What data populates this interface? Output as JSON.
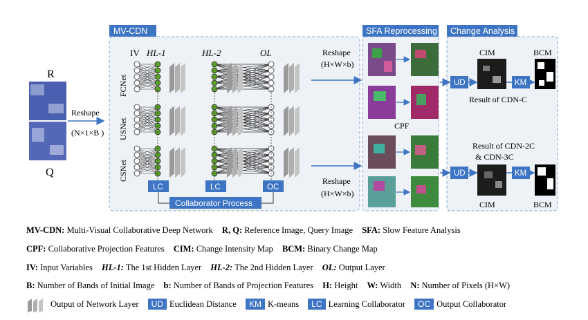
{
  "diagram": {
    "input_labels": {
      "r": "R",
      "q": "Q"
    },
    "reshape_left": {
      "line1": "Reshape",
      "line2": "(N×1×B )"
    },
    "mvcdn_title": "MV-CDN",
    "columns": {
      "iv": "IV",
      "hl1": "HL-1",
      "hl2": "HL-2",
      "ol": "OL"
    },
    "nets": [
      "FCNet",
      "USNet",
      "CSNet"
    ],
    "collab_boxes": [
      "LC",
      "LC",
      "OC"
    ],
    "collab_process": "Collaborator Process",
    "reshape_top": {
      "line1": "Reshape",
      "line2": "(H×W×b)"
    },
    "reshape_bottom": {
      "line1": "Reshape",
      "line2": "(H×W×b)"
    },
    "sfa_title": "SFA Reprocessing",
    "cpf_label": "CPF",
    "change_title": "Change Analysis",
    "ud_label": "UD",
    "km_label": "KM",
    "cim_label": "CIM",
    "bcm_label": "BCM",
    "result_c": "Result of CDN-C",
    "result_2c": "Result of CDN-2C",
    "result_3c": "& CDN-3C"
  },
  "legend": {
    "row1": [
      {
        "term": "MV-CDN:",
        "desc": "Multi-Visual Collaborative Deep Network"
      },
      {
        "term": "R, Q:",
        "desc": "Reference Image, Query Image"
      },
      {
        "term": "SFA:",
        "desc": "Slow Feature Analysis"
      }
    ],
    "row2": [
      {
        "term": "CPF:",
        "desc": "Collaborative Projection Features"
      },
      {
        "term": "CIM:",
        "desc": "Change Intensity Map"
      },
      {
        "term": "BCM:",
        "desc": "Binary Change Map"
      }
    ],
    "row3": [
      {
        "term": "IV:",
        "desc": "Input Variables"
      },
      {
        "term": "HL-1:",
        "desc": "The 1st Hidden Layer"
      },
      {
        "term": "HL-2:",
        "desc": "The 2nd Hidden Layer"
      },
      {
        "term": "OL:",
        "desc": "Output Layer"
      }
    ],
    "row4": [
      {
        "term": "B:",
        "desc": "Number of Bands of Initial Image"
      },
      {
        "term": "b:",
        "desc": "Number of Bands of Projection Features"
      },
      {
        "term": "H:",
        "desc": "Height"
      },
      {
        "term": "W:",
        "desc": "Width"
      },
      {
        "term": "N:",
        "desc": "Number of Pixels (H×W)"
      }
    ],
    "row5": {
      "layer": "Output of Network Layer",
      "ud_box": "UD",
      "ud_desc": "Euclidean Distance",
      "km_box": "KM",
      "km_desc": "K-means",
      "lc_box": "LC",
      "lc_desc": "Learning Collaborator",
      "oc_box": "OC",
      "oc_desc": "Output Collaborator"
    }
  },
  "colors": {
    "accent": "#3d74c4",
    "panel_fill": "#eef1f5",
    "panel_border": "#7fa6d3",
    "neuron": "#5a9e2c"
  }
}
